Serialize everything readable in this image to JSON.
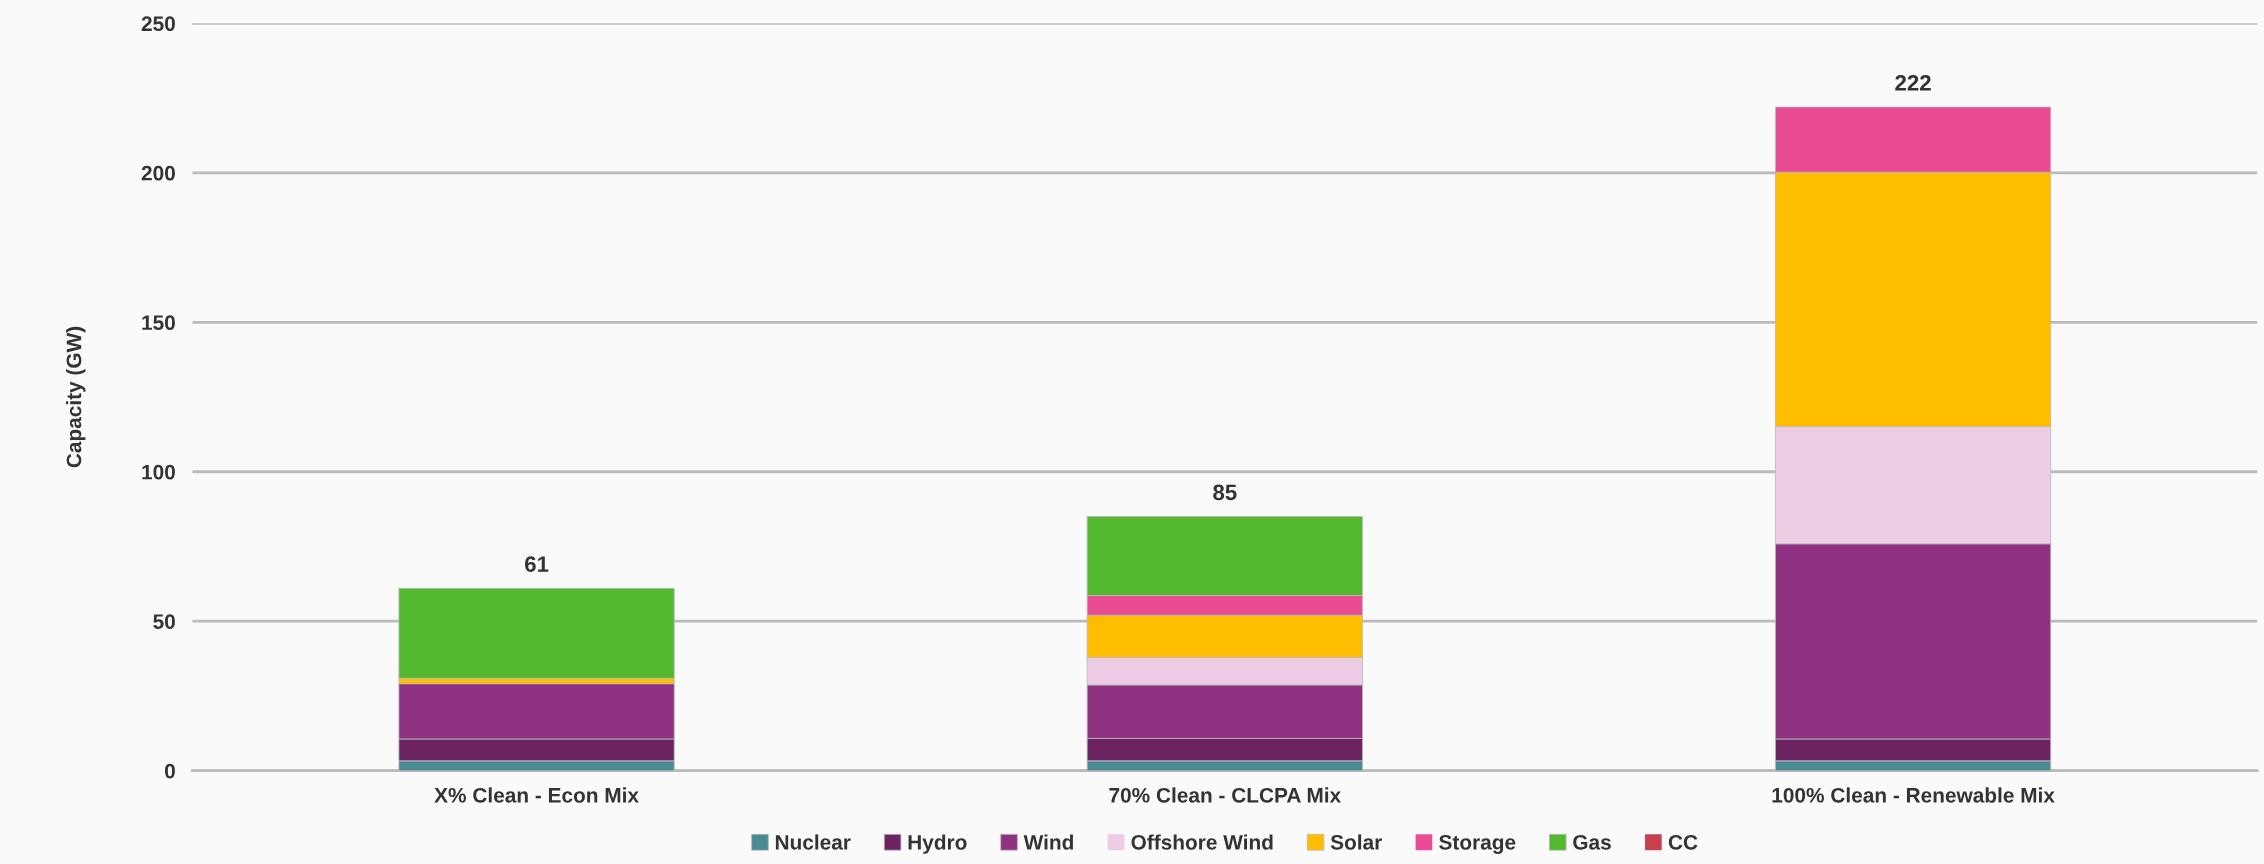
{
  "chart_data": {
    "type": "bar",
    "stacked": true,
    "ylabel": "Capacity (GW)",
    "categories": [
      "X% Clean - Econ Mix",
      "70% Clean - CLCPA Mix",
      "100% Clean - Renewable Mix"
    ],
    "series": [
      {
        "name": "Nuclear",
        "color": "#4a8a93",
        "values": [
          3.3,
          3.3,
          3.3
        ]
      },
      {
        "name": "Hydro",
        "color": "#6b2460",
        "values": [
          7.3,
          7.5,
          7.3
        ]
      },
      {
        "name": "Wind",
        "color": "#8e3180",
        "values": [
          18.5,
          17.9,
          65.3
        ]
      },
      {
        "name": "Offshore Wind",
        "color": "#eccde3",
        "values": [
          0,
          9.2,
          39.2
        ]
      },
      {
        "name": "Solar",
        "color": "#ffbd00",
        "values": [
          1.8,
          14.1,
          85.1
        ]
      },
      {
        "name": "Storage",
        "color": "#ea4c93",
        "values": [
          0,
          6.6,
          21.8
        ]
      },
      {
        "name": "Gas",
        "color": "#52b82e",
        "values": [
          30.1,
          26.4,
          0
        ]
      },
      {
        "name": "CC",
        "color": "#c8404e",
        "values": [
          0,
          0,
          0
        ]
      }
    ],
    "totals": [
      "61",
      "85",
      "222"
    ],
    "ylim": [
      0,
      250
    ],
    "yticks": [
      0,
      50,
      100,
      150,
      200,
      250
    ],
    "grid": "y",
    "legend": "bottom"
  }
}
